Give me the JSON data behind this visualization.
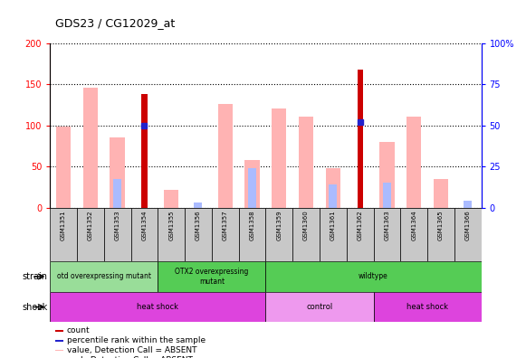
{
  "title": "GDS23 / CG12029_at",
  "samples": [
    "GSM1351",
    "GSM1352",
    "GSM1353",
    "GSM1354",
    "GSM1355",
    "GSM1356",
    "GSM1357",
    "GSM1358",
    "GSM1359",
    "GSM1360",
    "GSM1361",
    "GSM1362",
    "GSM1363",
    "GSM1364",
    "GSM1365",
    "GSM1366"
  ],
  "value_absent": [
    98,
    146,
    85,
    0,
    22,
    0,
    126,
    58,
    120,
    110,
    48,
    0,
    80,
    110,
    35,
    0
  ],
  "rank_absent": [
    0,
    0,
    35,
    0,
    0,
    6,
    0,
    48,
    0,
    0,
    28,
    0,
    30,
    0,
    0,
    8
  ],
  "count_present": [
    0,
    0,
    0,
    138,
    0,
    0,
    0,
    0,
    0,
    0,
    0,
    168,
    0,
    0,
    0,
    0
  ],
  "percentile_rank": [
    0,
    0,
    0,
    50,
    0,
    0,
    0,
    0,
    0,
    0,
    0,
    52,
    0,
    0,
    0,
    0
  ],
  "ylim_left": [
    0,
    200
  ],
  "ylim_right": [
    0,
    100
  ],
  "yticks_left": [
    0,
    50,
    100,
    150,
    200
  ],
  "yticks_right": [
    0,
    25,
    50,
    75,
    100
  ],
  "color_count": "#cc0000",
  "color_percentile": "#2222cc",
  "color_value_absent": "#ffb3b3",
  "color_rank_absent": "#aabbff",
  "strain_data": [
    {
      "label": "otd overexpressing mutant",
      "start": 0,
      "end": 4
    },
    {
      "label": "OTX2 overexpressing\nmutant",
      "start": 4,
      "end": 8
    },
    {
      "label": "wildtype",
      "start": 8,
      "end": 16
    }
  ],
  "shock_data": [
    {
      "label": "heat shock",
      "start": 0,
      "end": 8,
      "color": "#dd44dd"
    },
    {
      "label": "control",
      "start": 8,
      "end": 12,
      "color": "#ee99ee"
    },
    {
      "label": "heat shock",
      "start": 12,
      "end": 16,
      "color": "#dd44dd"
    }
  ],
  "strain_color_light": "#99dd99",
  "strain_color_bright": "#55cc55",
  "bar_width": 0.55,
  "background_label_row": "#c8c8c8"
}
